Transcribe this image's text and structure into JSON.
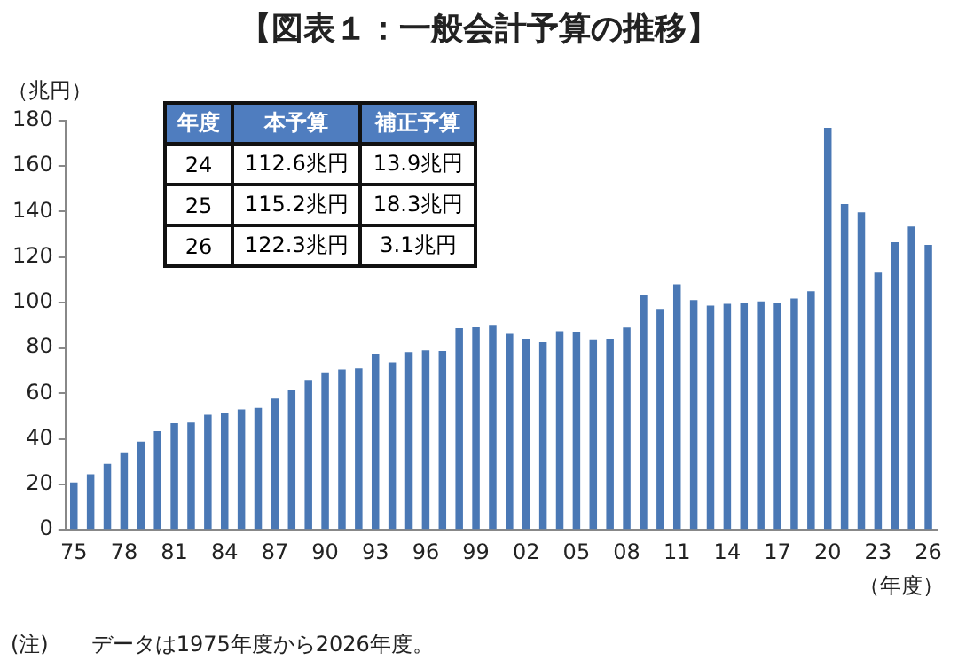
{
  "chart_data": {
    "type": "bar",
    "title": "【図表１：一般会計予算の推移】",
    "ylabel": "（兆円）",
    "xlabel": "（年度）",
    "categories": [
      "75",
      null,
      null,
      "78",
      null,
      null,
      "81",
      null,
      null,
      "84",
      null,
      null,
      "87",
      null,
      null,
      "90",
      null,
      null,
      "93",
      null,
      null,
      "96",
      null,
      null,
      "99",
      null,
      null,
      "02",
      null,
      null,
      "05",
      null,
      null,
      "08",
      null,
      null,
      "11",
      null,
      null,
      "14",
      null,
      null,
      "17",
      null,
      null,
      "20",
      null,
      null,
      "23",
      null,
      null,
      "26"
    ],
    "values": [
      20.9,
      24.5,
      29.1,
      34.1,
      38.8,
      43.4,
      46.9,
      47.2,
      50.6,
      51.5,
      53.0,
      53.6,
      57.7,
      61.5,
      65.9,
      69.3,
      70.5,
      71.0,
      77.4,
      73.6,
      78.0,
      78.8,
      78.5,
      88.7,
      89.3,
      90.1,
      86.5,
      84.0,
      82.4,
      87.3,
      87.1,
      83.7,
      84.0,
      89.0,
      103.3,
      97.2,
      108.0,
      101.1,
      98.6,
      99.4,
      100.0,
      100.5,
      99.7,
      101.7,
      105.0,
      176.9,
      143.3,
      139.7,
      113.2,
      126.5,
      133.5,
      125.4
    ],
    "color": "#4a78b5",
    "ylim": [
      0,
      180
    ],
    "yticks": [
      0,
      20,
      40,
      60,
      80,
      100,
      120,
      140,
      160,
      180
    ],
    "grid": false,
    "legend": false,
    "annotations": [
      "年度",
      "本予算",
      "補正予算",
      "24",
      "112.6兆円",
      "13.9兆円",
      "25",
      "115.2兆円",
      "18.3兆円",
      "26",
      "122.3兆円",
      "3.1兆円",
      "(注)　　データは1975年度から2026年度。"
    ]
  }
}
